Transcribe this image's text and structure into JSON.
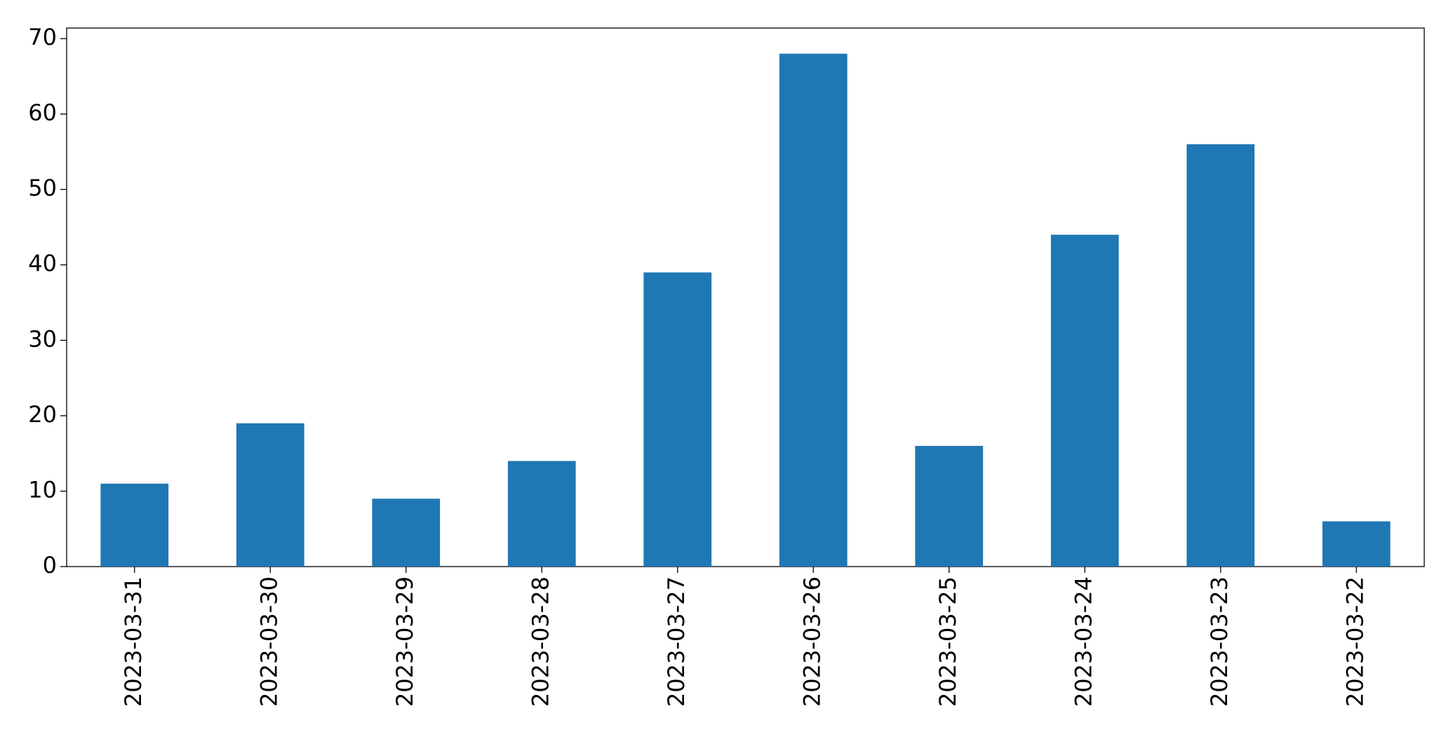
{
  "chart_data": {
    "type": "bar",
    "categories": [
      "2023-03-31",
      "2023-03-30",
      "2023-03-29",
      "2023-03-28",
      "2023-03-27",
      "2023-03-26",
      "2023-03-25",
      "2023-03-24",
      "2023-03-23",
      "2023-03-22"
    ],
    "values": [
      11,
      19,
      9,
      14,
      39,
      68,
      16,
      44,
      56,
      6
    ],
    "color": "#1f77b4",
    "ylim": [
      0,
      71.4
    ],
    "yticks": [
      0,
      10,
      20,
      30,
      40,
      50,
      60,
      70
    ],
    "grid": false
  }
}
